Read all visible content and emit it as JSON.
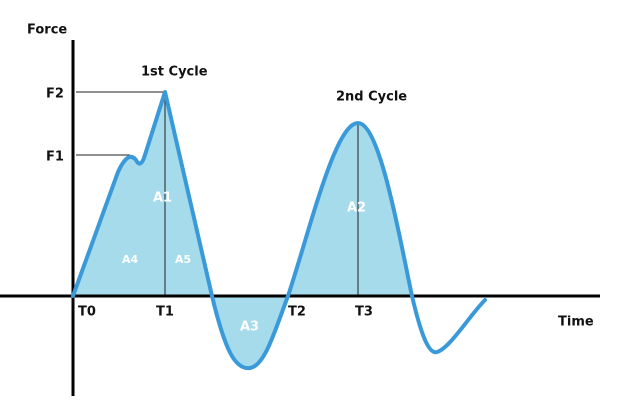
{
  "axes": {
    "y_label": "Force",
    "x_label": "Time"
  },
  "cycles": [
    "1st Cycle",
    "2nd Cycle"
  ],
  "force_levels": [
    "F1",
    "F2"
  ],
  "time_points": [
    "T0",
    "T1",
    "T2",
    "T3"
  ],
  "areas": [
    "A1",
    "A2",
    "A3",
    "A4",
    "A5"
  ]
}
